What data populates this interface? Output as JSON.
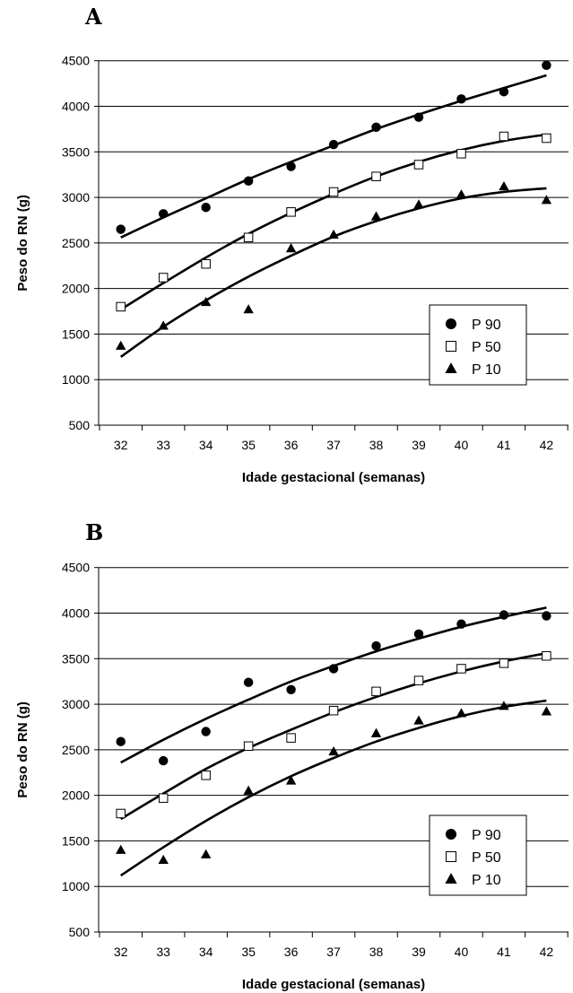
{
  "chart_data": [
    {
      "panel": "A",
      "type": "scatter",
      "xlabel": "Idade gestacional (semanas)",
      "ylabel": "Peso do RN (g)",
      "x": [
        32,
        33,
        34,
        35,
        36,
        37,
        38,
        39,
        40,
        41,
        42
      ],
      "xlim": [
        32,
        42
      ],
      "ylim": [
        500,
        4500
      ],
      "yticks": [
        500,
        1000,
        1500,
        2000,
        2500,
        3000,
        3500,
        4000,
        4500
      ],
      "grid": true,
      "legend_position": "bottom-right",
      "series": [
        {
          "name": "P 90",
          "marker": "circle",
          "points": [
            2650,
            2820,
            2890,
            3180,
            3340,
            3580,
            3770,
            3880,
            4080,
            4160,
            4450
          ],
          "trend": [
            2560,
            2780,
            2990,
            3200,
            3390,
            3570,
            3750,
            3910,
            4060,
            4200,
            4340
          ]
        },
        {
          "name": "P 50",
          "marker": "square",
          "points": [
            1800,
            2120,
            2270,
            2560,
            2840,
            3060,
            3230,
            3360,
            3480,
            3670,
            3650
          ],
          "trend": [
            1770,
            2060,
            2340,
            2600,
            2830,
            3040,
            3230,
            3390,
            3520,
            3620,
            3690
          ]
        },
        {
          "name": "P 10",
          "marker": "triangle",
          "points": [
            1370,
            1590,
            1850,
            1770,
            2440,
            2590,
            2790,
            2920,
            3030,
            3120,
            2970
          ],
          "trend": [
            1250,
            1580,
            1870,
            2130,
            2360,
            2570,
            2740,
            2880,
            2990,
            3060,
            3100
          ]
        }
      ]
    },
    {
      "panel": "B",
      "type": "scatter",
      "xlabel": "Idade gestacional (semanas)",
      "ylabel": "Peso do RN (g)",
      "x": [
        32,
        33,
        34,
        35,
        36,
        37,
        38,
        39,
        40,
        41,
        42
      ],
      "xlim": [
        32,
        42
      ],
      "ylim": [
        500,
        4500
      ],
      "yticks": [
        500,
        1000,
        1500,
        2000,
        2500,
        3000,
        3500,
        4000,
        4500
      ],
      "grid": true,
      "legend_position": "bottom-right",
      "series": [
        {
          "name": "P 90",
          "marker": "circle",
          "points": [
            2590,
            2380,
            2700,
            3240,
            3160,
            3390,
            3640,
            3770,
            3880,
            3980,
            3970
          ],
          "trend": [
            2360,
            2610,
            2840,
            3050,
            3250,
            3420,
            3580,
            3720,
            3850,
            3960,
            4060
          ]
        },
        {
          "name": "P 50",
          "marker": "square",
          "points": [
            1800,
            1970,
            2220,
            2540,
            2630,
            2930,
            3140,
            3260,
            3390,
            3450,
            3530
          ],
          "trend": [
            1740,
            2020,
            2290,
            2520,
            2720,
            2910,
            3080,
            3230,
            3360,
            3470,
            3560
          ]
        },
        {
          "name": "P 10",
          "marker": "triangle",
          "points": [
            1400,
            1290,
            1350,
            2050,
            2160,
            2480,
            2680,
            2820,
            2900,
            2980,
            2920
          ],
          "trend": [
            1120,
            1430,
            1720,
            1980,
            2210,
            2410,
            2590,
            2740,
            2870,
            2970,
            3040
          ]
        }
      ]
    }
  ]
}
